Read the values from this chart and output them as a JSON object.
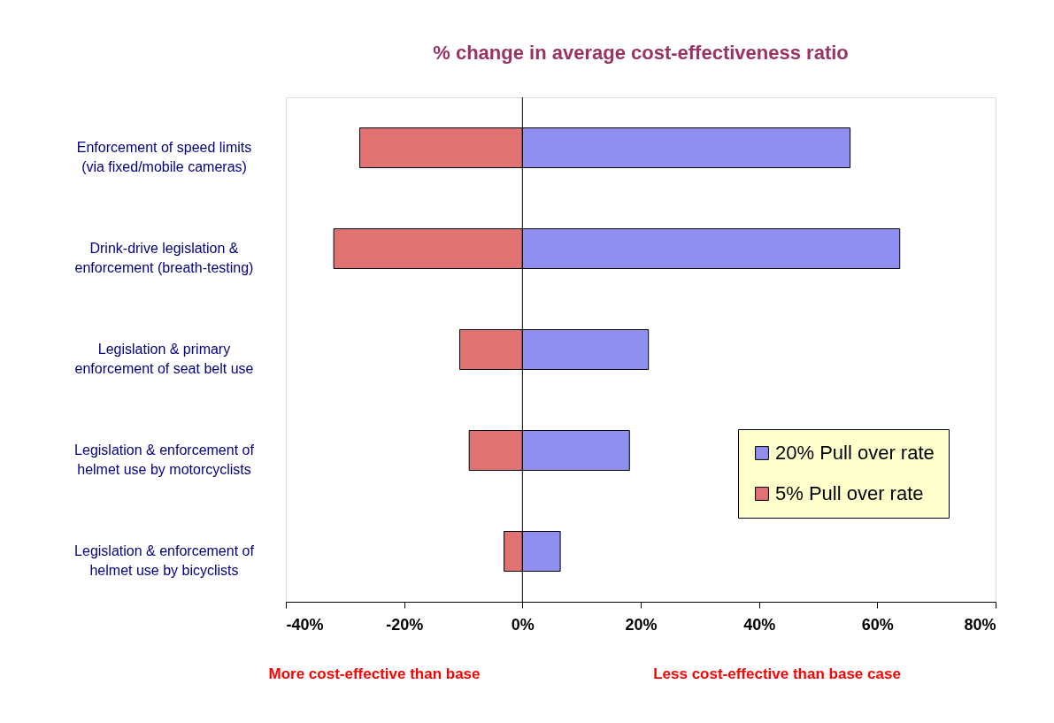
{
  "chart_data": {
    "type": "bar",
    "orientation": "horizontal",
    "title": "% change in average cost-effectiveness ratio",
    "categories": [
      "Enforcement of speed limits\n(via fixed/mobile cameras)",
      "Drink-drive legislation &\nenforcement (breath-testing)",
      "Legislation & primary\nenforcement of seat belt use",
      "Legislation & enforcement of\nhelmet use by motorcyclists",
      "Legislation & enforcement of\nhelmet use by bicyclists"
    ],
    "series": [
      {
        "name": "20% Pull over rate",
        "color": "#8f8ff0",
        "values": [
          55.4,
          63.8,
          21.3,
          18.1,
          6.4
        ]
      },
      {
        "name": "5% Pull over rate",
        "color": "#e07272",
        "values": [
          -27.5,
          -31.9,
          -10.6,
          -9.0,
          -3.1
        ]
      }
    ],
    "xlim": [
      -40,
      80
    ],
    "xticks": [
      {
        "value": -40,
        "label": "-40%"
      },
      {
        "value": -20,
        "label": "-20%"
      },
      {
        "value": 0,
        "label": "0%"
      },
      {
        "value": 20,
        "label": "20%"
      },
      {
        "value": 40,
        "label": "40%"
      },
      {
        "value": 60,
        "label": "60%"
      },
      {
        "value": 80,
        "label": "80%"
      }
    ],
    "ref_lines": [
      {
        "axis": "x",
        "value": 0
      }
    ],
    "annotations": [
      "More cost-effective than base",
      "Less cost-effective than base case"
    ],
    "stacked": true,
    "legend": "right",
    "grid": false
  }
}
